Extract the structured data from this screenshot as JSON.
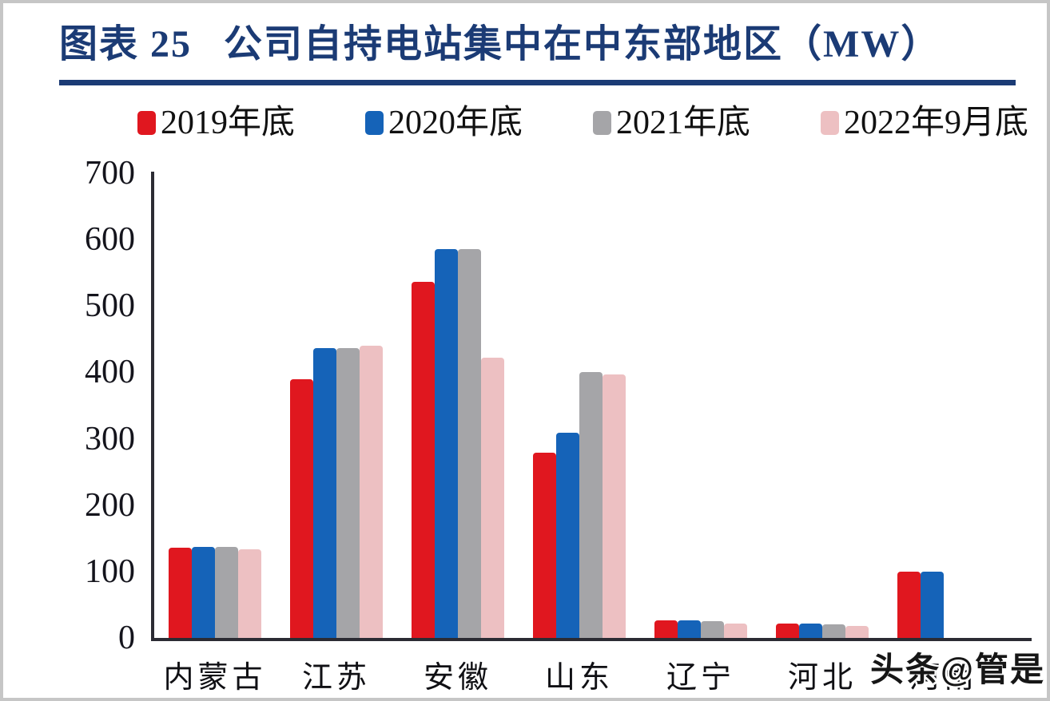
{
  "title": {
    "index_label": "图表 25",
    "text": "公司自持电站集中在中东部地区（MW）"
  },
  "watermark": "头条@管是",
  "colors": {
    "title_navy": "#1b3b75",
    "axis": "#2b2b33",
    "series_red": "#e0171f",
    "series_blue": "#1563b8",
    "series_gray": "#a5a5a8",
    "series_pink": "#edc0c2"
  },
  "chart_data": {
    "type": "bar",
    "title": "图表 25 公司自持电站集中在中东部地区（MW）",
    "unit": "MW",
    "categories": [
      "内蒙古",
      "江苏",
      "安徽",
      "山东",
      "辽宁",
      "河北",
      "河南"
    ],
    "series": [
      {
        "name": "2019年底",
        "color": "#e0171f",
        "values": [
          136,
          390,
          536,
          279,
          26,
          22,
          100
        ]
      },
      {
        "name": "2020年底",
        "color": "#1563b8",
        "values": [
          137,
          437,
          586,
          309,
          26,
          22,
          100
        ]
      },
      {
        "name": "2021年底",
        "color": "#a5a5a8",
        "values": [
          137,
          436,
          586,
          400,
          25,
          21,
          0
        ]
      },
      {
        "name": "2022年9月底",
        "color": "#edc0c2",
        "values": [
          133,
          440,
          422,
          397,
          22,
          18,
          0
        ]
      }
    ],
    "ylim": [
      0,
      700
    ],
    "yticks": [
      0,
      100,
      200,
      300,
      400,
      500,
      600,
      700
    ],
    "grid": false,
    "legend_position": "top"
  }
}
